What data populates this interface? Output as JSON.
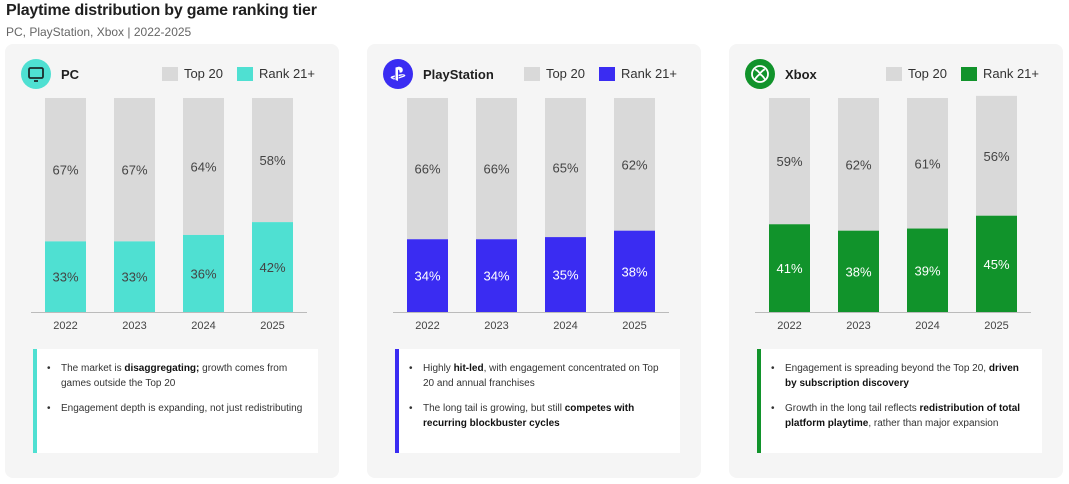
{
  "header": {
    "title": "Playtime distribution by game ranking tier",
    "subtitle": "PC, PlayStation, Xbox | 2022-2025"
  },
  "legend": {
    "top20": "Top 20",
    "rank21": "Rank 21+"
  },
  "colors": {
    "top20": "#d9d9d9",
    "pc": "#4fe0d2",
    "playstation": "#3a2cf2",
    "xbox": "#11932b"
  },
  "panels": [
    {
      "platform": "PC",
      "icon": "monitor-icon",
      "accent": "#4fe0d2",
      "bullets": [
        {
          "pre": "The market is ",
          "bold": "disaggregating;",
          "post": " growth comes from games outside the Top 20"
        },
        {
          "pre": "Engagement depth is expanding, not just redistributing",
          "bold": "",
          "post": ""
        }
      ]
    },
    {
      "platform": "PlayStation",
      "icon": "playstation-icon",
      "accent": "#3a2cf2",
      "bullets": [
        {
          "pre": "Highly ",
          "bold": "hit-led",
          "post": ", with engagement concentrated on Top 20 and annual franchises"
        },
        {
          "pre": "The long tail is growing, but still ",
          "bold": "competes with recurring blockbuster cycles",
          "post": ""
        }
      ]
    },
    {
      "platform": "Xbox",
      "icon": "xbox-icon",
      "accent": "#11932b",
      "bullets": [
        {
          "pre": "Engagement is spreading beyond the Top 20, ",
          "bold": "driven by subscription discovery",
          "post": ""
        },
        {
          "pre": "Growth in the long tail reflects ",
          "bold": "redistribution of total platform playtime",
          "post": ", rather than major expansion"
        }
      ]
    }
  ],
  "chart_data": [
    {
      "type": "bar",
      "stacked": true,
      "title": "PC",
      "categories": [
        "2022",
        "2023",
        "2024",
        "2025"
      ],
      "series": [
        {
          "name": "Rank 21+",
          "values": [
            33,
            33,
            36,
            42
          ]
        },
        {
          "name": "Top 20",
          "values": [
            67,
            67,
            64,
            58
          ]
        }
      ],
      "unit": "%",
      "ylim": [
        0,
        100
      ]
    },
    {
      "type": "bar",
      "stacked": true,
      "title": "PlayStation",
      "categories": [
        "2022",
        "2023",
        "2024",
        "2025"
      ],
      "series": [
        {
          "name": "Rank 21+",
          "values": [
            34,
            34,
            35,
            38
          ]
        },
        {
          "name": "Top 20",
          "values": [
            66,
            66,
            65,
            62
          ]
        }
      ],
      "unit": "%",
      "ylim": [
        0,
        100
      ]
    },
    {
      "type": "bar",
      "stacked": true,
      "title": "Xbox",
      "categories": [
        "2022",
        "2023",
        "2024",
        "2025"
      ],
      "series": [
        {
          "name": "Rank 21+",
          "values": [
            41,
            38,
            39,
            45
          ]
        },
        {
          "name": "Top 20",
          "values": [
            59,
            62,
            61,
            56
          ]
        }
      ],
      "unit": "%",
      "ylim": [
        0,
        100
      ]
    }
  ]
}
